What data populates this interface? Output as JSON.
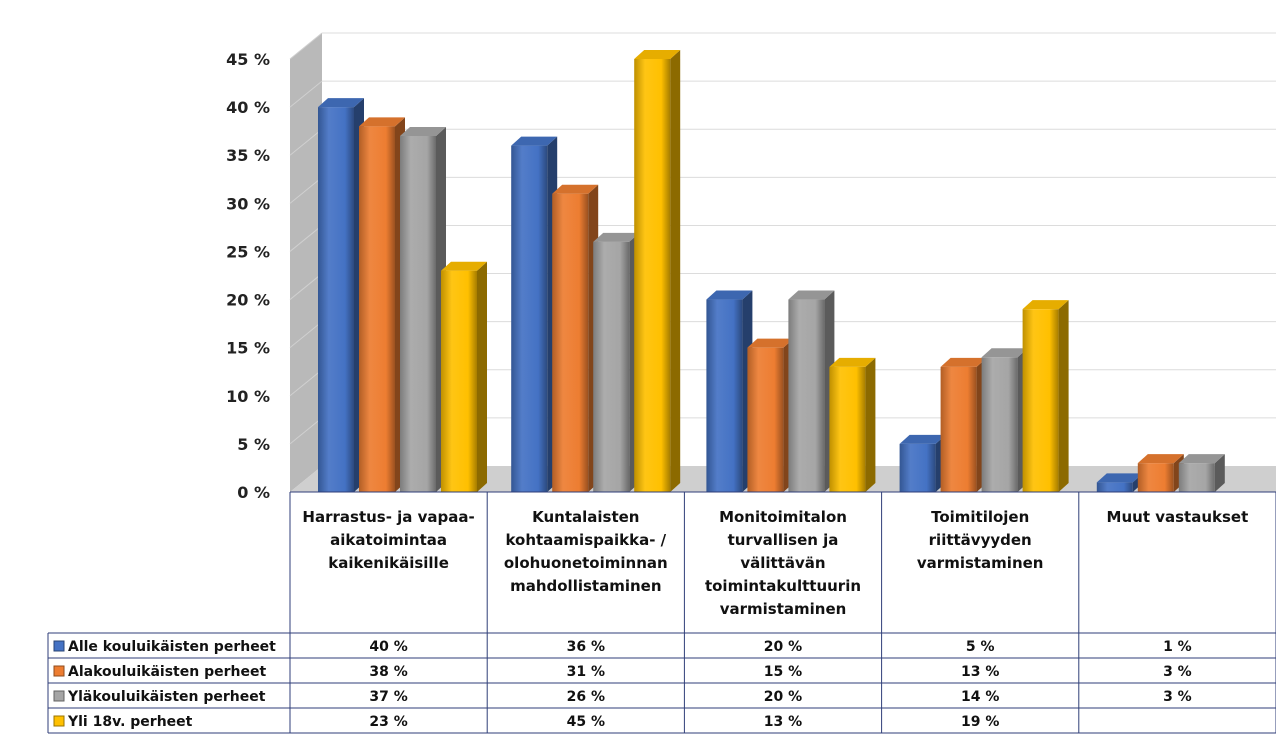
{
  "chart_data": {
    "type": "bar",
    "categories": [
      [
        "Harrastus- ja vapaa-",
        "aikatoimintaa",
        "kaikenikäisille"
      ],
      [
        "Kuntalaisten",
        "kohtaamispaikka- /",
        "olohuonetoiminnan",
        "mahdollistaminen"
      ],
      [
        "Monitoimitalon",
        "turvallisen ja",
        "välittävän",
        "toimintakulttuurin",
        "varmistaminen"
      ],
      [
        "Toimitilojen",
        "riittävyyden",
        "varmistaminen"
      ],
      [
        "Muut vastaukset"
      ]
    ],
    "series": [
      {
        "name": "Alle kouluikäisten perheet",
        "color": "#4472C4",
        "values": [
          40,
          36,
          20,
          5,
          1
        ],
        "labels": [
          "40 %",
          "36 %",
          "20 %",
          "5 %",
          "1 %"
        ]
      },
      {
        "name": "Alakouluikäisten perheet",
        "color": "#ED7D31",
        "values": [
          38,
          31,
          15,
          13,
          3
        ],
        "labels": [
          "38 %",
          "31 %",
          "15 %",
          "13 %",
          "3 %"
        ]
      },
      {
        "name": "Yläkouluikäisten perheet",
        "color": "#A5A5A5",
        "values": [
          37,
          26,
          20,
          14,
          3
        ],
        "labels": [
          "37 %",
          "26 %",
          "20 %",
          "14 %",
          "3 %"
        ]
      },
      {
        "name": "Yli 18v. perheet",
        "color": "#FFC000",
        "values": [
          23,
          45,
          13,
          19,
          null
        ],
        "labels": [
          "23 %",
          "45 %",
          "13 %",
          "19 %",
          ""
        ]
      }
    ],
    "yticks": [
      "0 %",
      "5 %",
      "10 %",
      "15 %",
      "20 %",
      "25 %",
      "30 %",
      "35 %",
      "40 %",
      "45 %"
    ],
    "ylim": [
      0,
      45
    ],
    "grid": true,
    "legend": "data-table"
  }
}
